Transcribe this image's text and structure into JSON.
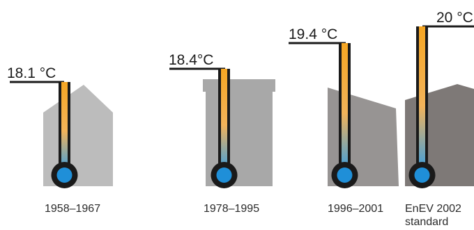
{
  "colors": {
    "house_1": "#bcbcbc",
    "house_2": "#a8a8a8",
    "house_3": "#979493",
    "house_4": "#7e7977",
    "thermometer_outline": "#1a1a1a",
    "mercury_top": "#f5a623",
    "mercury_bottom": "#3b9ee0",
    "bulb": "#1f8fd8"
  },
  "items": [
    {
      "temperature": "18.1 °C",
      "period": "1958–1967",
      "period_line2": ""
    },
    {
      "temperature": "18.4°C",
      "period": "1978–1995",
      "period_line2": ""
    },
    {
      "temperature": "19.4 °C",
      "period": "1996–2001",
      "period_line2": ""
    },
    {
      "temperature": "20 °C",
      "period": "EnEV 2002",
      "period_line2": "standard"
    }
  ]
}
